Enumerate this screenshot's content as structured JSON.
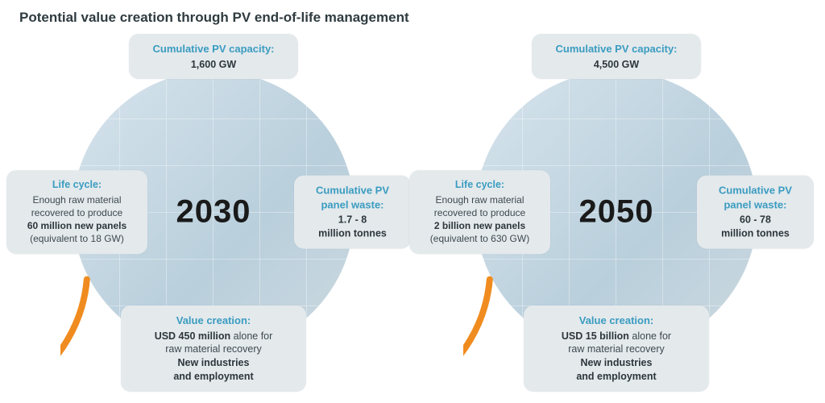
{
  "title": "Potential value creation through PV end-of-life management",
  "colors": {
    "accent_orange": "#f08c1f",
    "label_teal": "#3a9cc0",
    "box_bg": "#e4e9ec",
    "text_dark": "#2c363b",
    "text_body": "#3d494f"
  },
  "arc": {
    "radius": 178,
    "stroke_width": 8,
    "start_angle_deg": -85,
    "end_angle_deg": 242,
    "arrow_angle_deg": -85
  },
  "charts": [
    {
      "year": "2030",
      "top": {
        "label": "Cumulative PV capacity:",
        "value": "1,600 GW"
      },
      "right": {
        "label": "Cumulative PV panel waste:",
        "value_line1": "1.7 - 8",
        "value_line2": "million tonnes"
      },
      "bottom": {
        "label": "Value creation:",
        "line1_pre": "USD 450 million",
        "line1_post": " alone for",
        "line2": "raw material recovery",
        "line3": "New industries",
        "line4": "and employment"
      },
      "left": {
        "label": "Life cycle:",
        "line1": "Enough raw material",
        "line2": "recovered to produce",
        "line3": "60 million new panels",
        "line4": "(equivalent to 18 GW)"
      }
    },
    {
      "year": "2050",
      "top": {
        "label": "Cumulative PV capacity:",
        "value": "4,500 GW"
      },
      "right": {
        "label": "Cumulative PV panel waste:",
        "value_line1": "60 - 78",
        "value_line2": "million tonnes"
      },
      "bottom": {
        "label": "Value creation:",
        "line1_pre": "USD 15 billion",
        "line1_post": " alone for",
        "line2": "raw material recovery",
        "line3": "New industries",
        "line4": "and employment"
      },
      "left": {
        "label": "Life cycle:",
        "line1": "Enough raw material",
        "line2": "recovered to produce",
        "line3": "2 billion new panels",
        "line4": "(equivalent to 630 GW)"
      }
    }
  ]
}
